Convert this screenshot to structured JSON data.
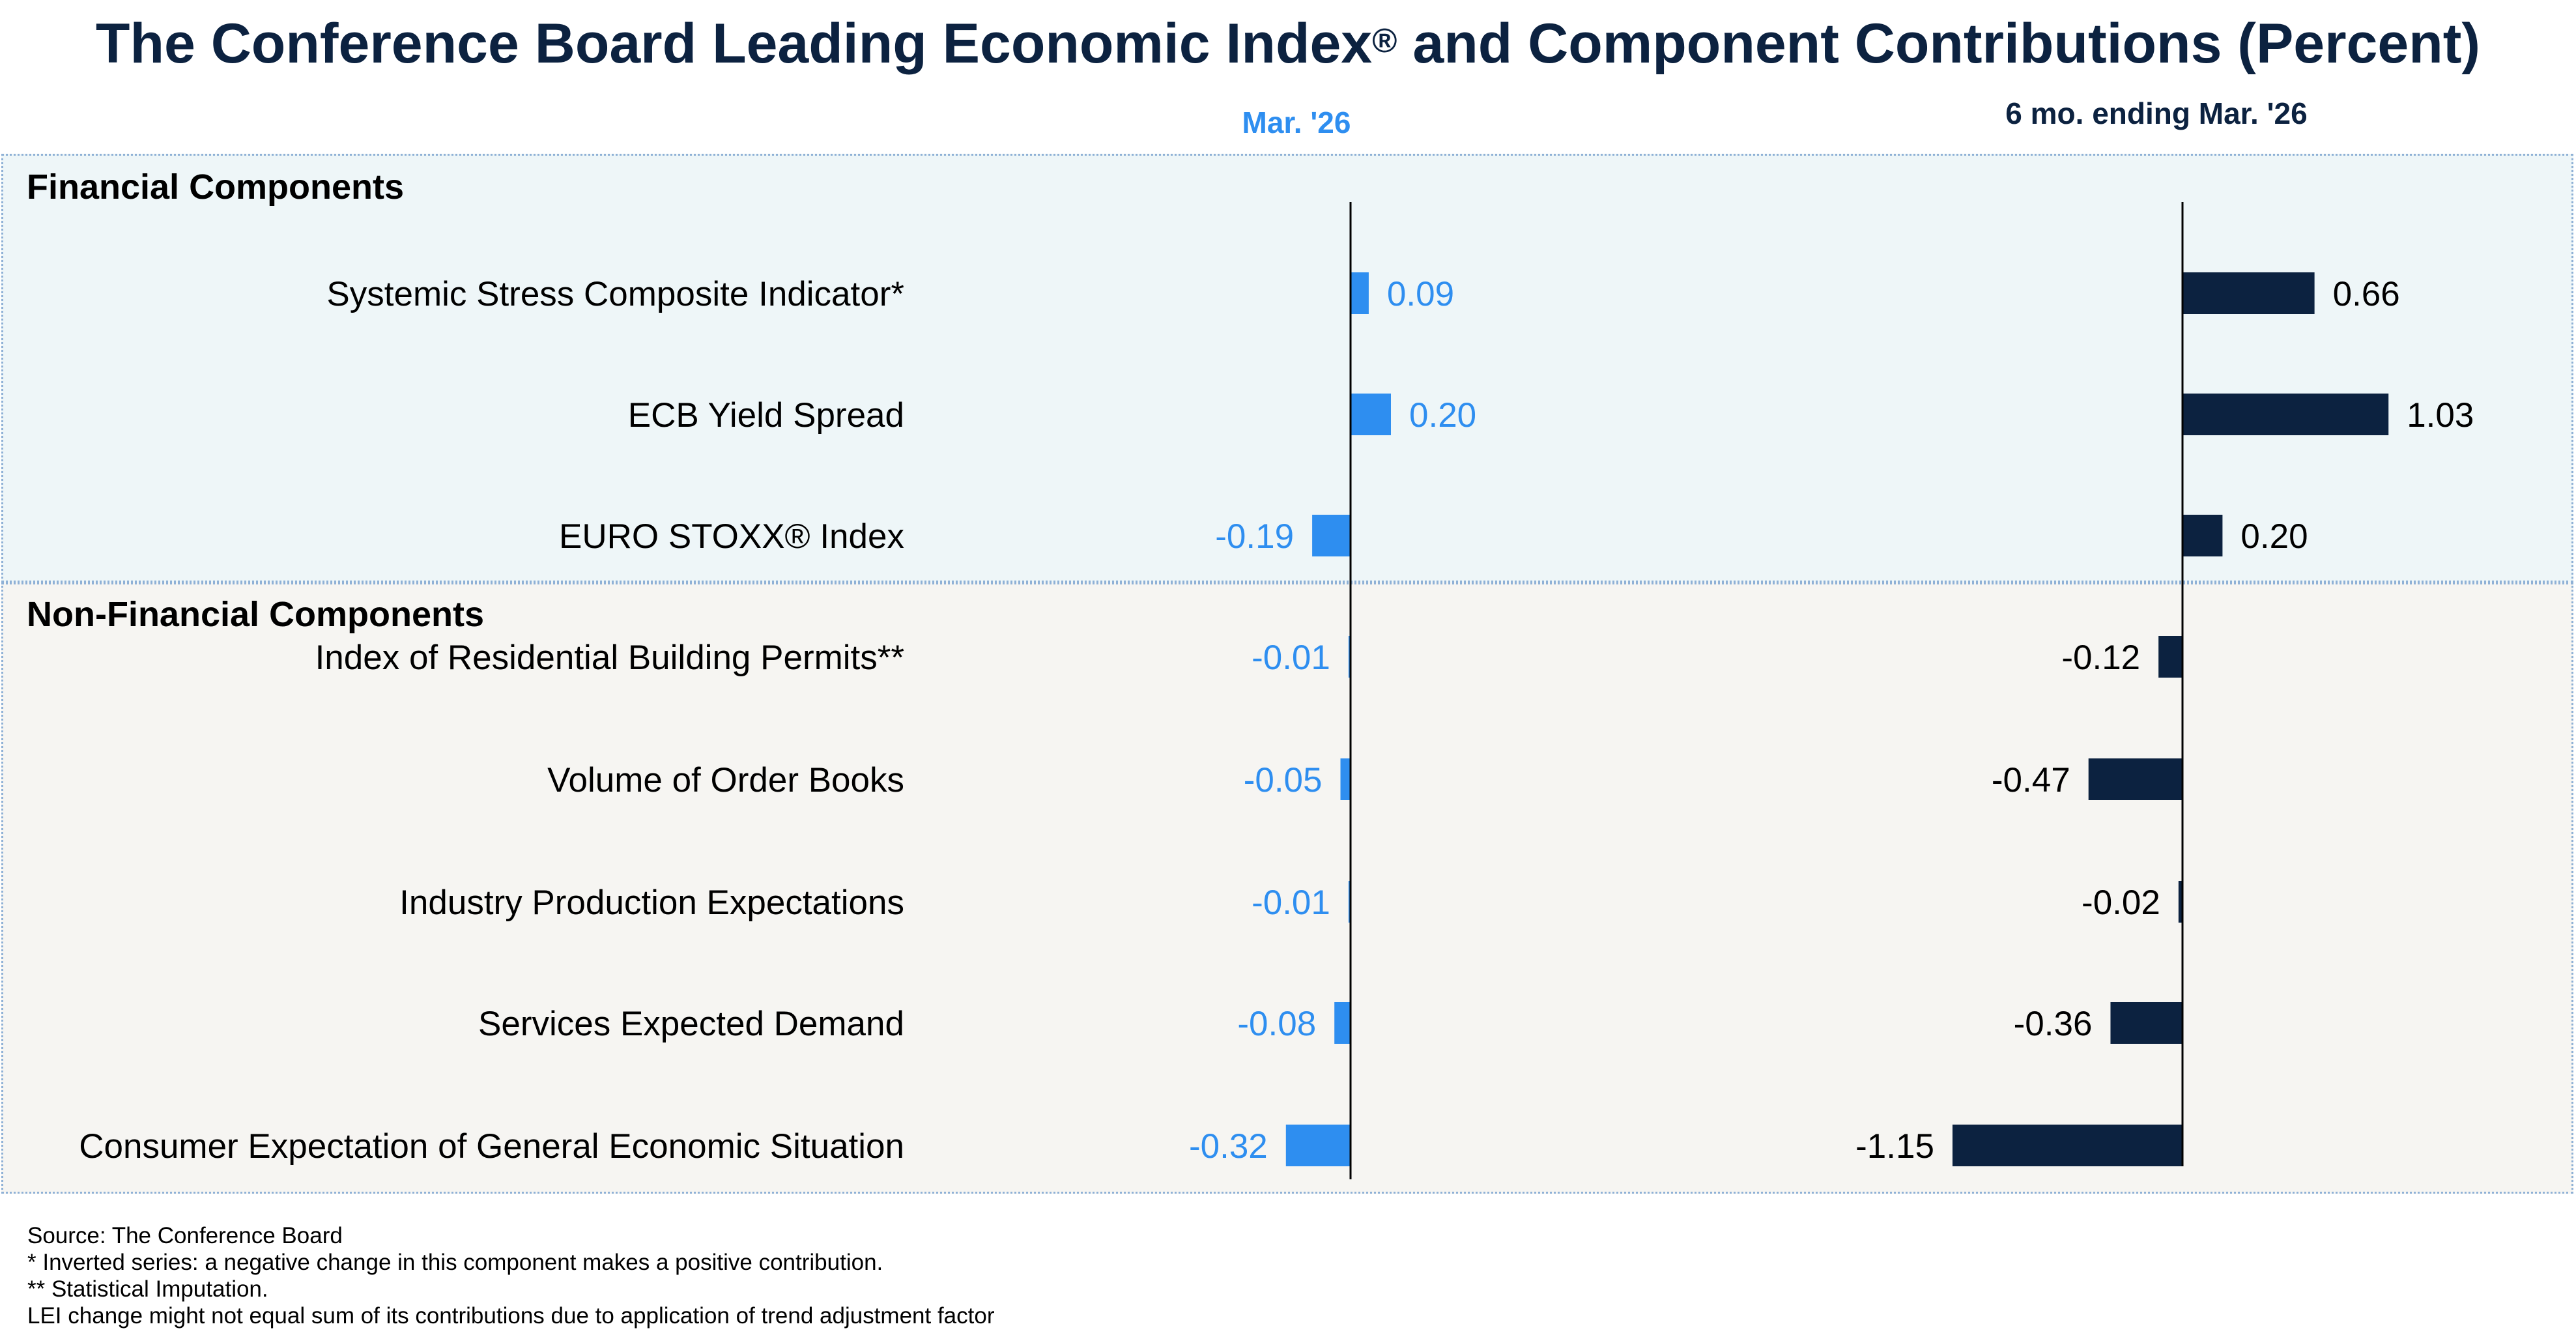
{
  "title": "The Conference Board Leading Economic Index",
  "title_mark": "®",
  "title_suffix": " and Component Contributions (Percent)",
  "colors": {
    "mar": "#2e8ef0",
    "sixmo": "#0c2240",
    "title": "#0c2240"
  },
  "sections": {
    "financial": "Financial Components",
    "non_financial": "Non-Financial Components"
  },
  "chart_data": {
    "type": "bar",
    "orientation": "horizontal",
    "title": "The Conference Board Leading Economic Index® and Component Contributions (Percent)",
    "categories": [
      "Systemic Stress Composite Indicator*",
      "ECB Yield Spread",
      "EURO STOXX® Index",
      "Index of Residential Building Permits**",
      "Volume of Order Books",
      "Industry Production Expectations",
      "Services Expected Demand",
      "Consumer Expectation of General Economic Situation"
    ],
    "groups": [
      "Financial Components",
      "Financial Components",
      "Financial Components",
      "Non-Financial Components",
      "Non-Financial Components",
      "Non-Financial Components",
      "Non-Financial Components",
      "Non-Financial Components"
    ],
    "series": [
      {
        "name": "Mar. '26",
        "values": [
          0.09,
          0.2,
          -0.19,
          -0.01,
          -0.05,
          -0.01,
          -0.08,
          -0.32
        ],
        "labels": [
          "0.09",
          "0.20",
          "-0.19",
          "-0.01",
          "-0.05",
          "-0.01",
          "-0.08",
          "-0.32"
        ]
      },
      {
        "name": "6 mo. ending Mar. '26",
        "values": [
          0.66,
          1.03,
          0.2,
          -0.12,
          -0.47,
          -0.02,
          -0.36,
          -1.15
        ],
        "labels": [
          "0.66",
          "1.03",
          "0.20",
          "-0.12",
          "-0.47",
          "-0.02",
          "-0.36",
          "-1.15"
        ]
      }
    ]
  },
  "footnotes": [
    "Source: The Conference Board",
    "* Inverted series: a negative change in this component makes a positive contribution.",
    "**  Statistical Imputation.",
    "LEI change might not equal sum of its contributions due to application of trend adjustment factor"
  ]
}
